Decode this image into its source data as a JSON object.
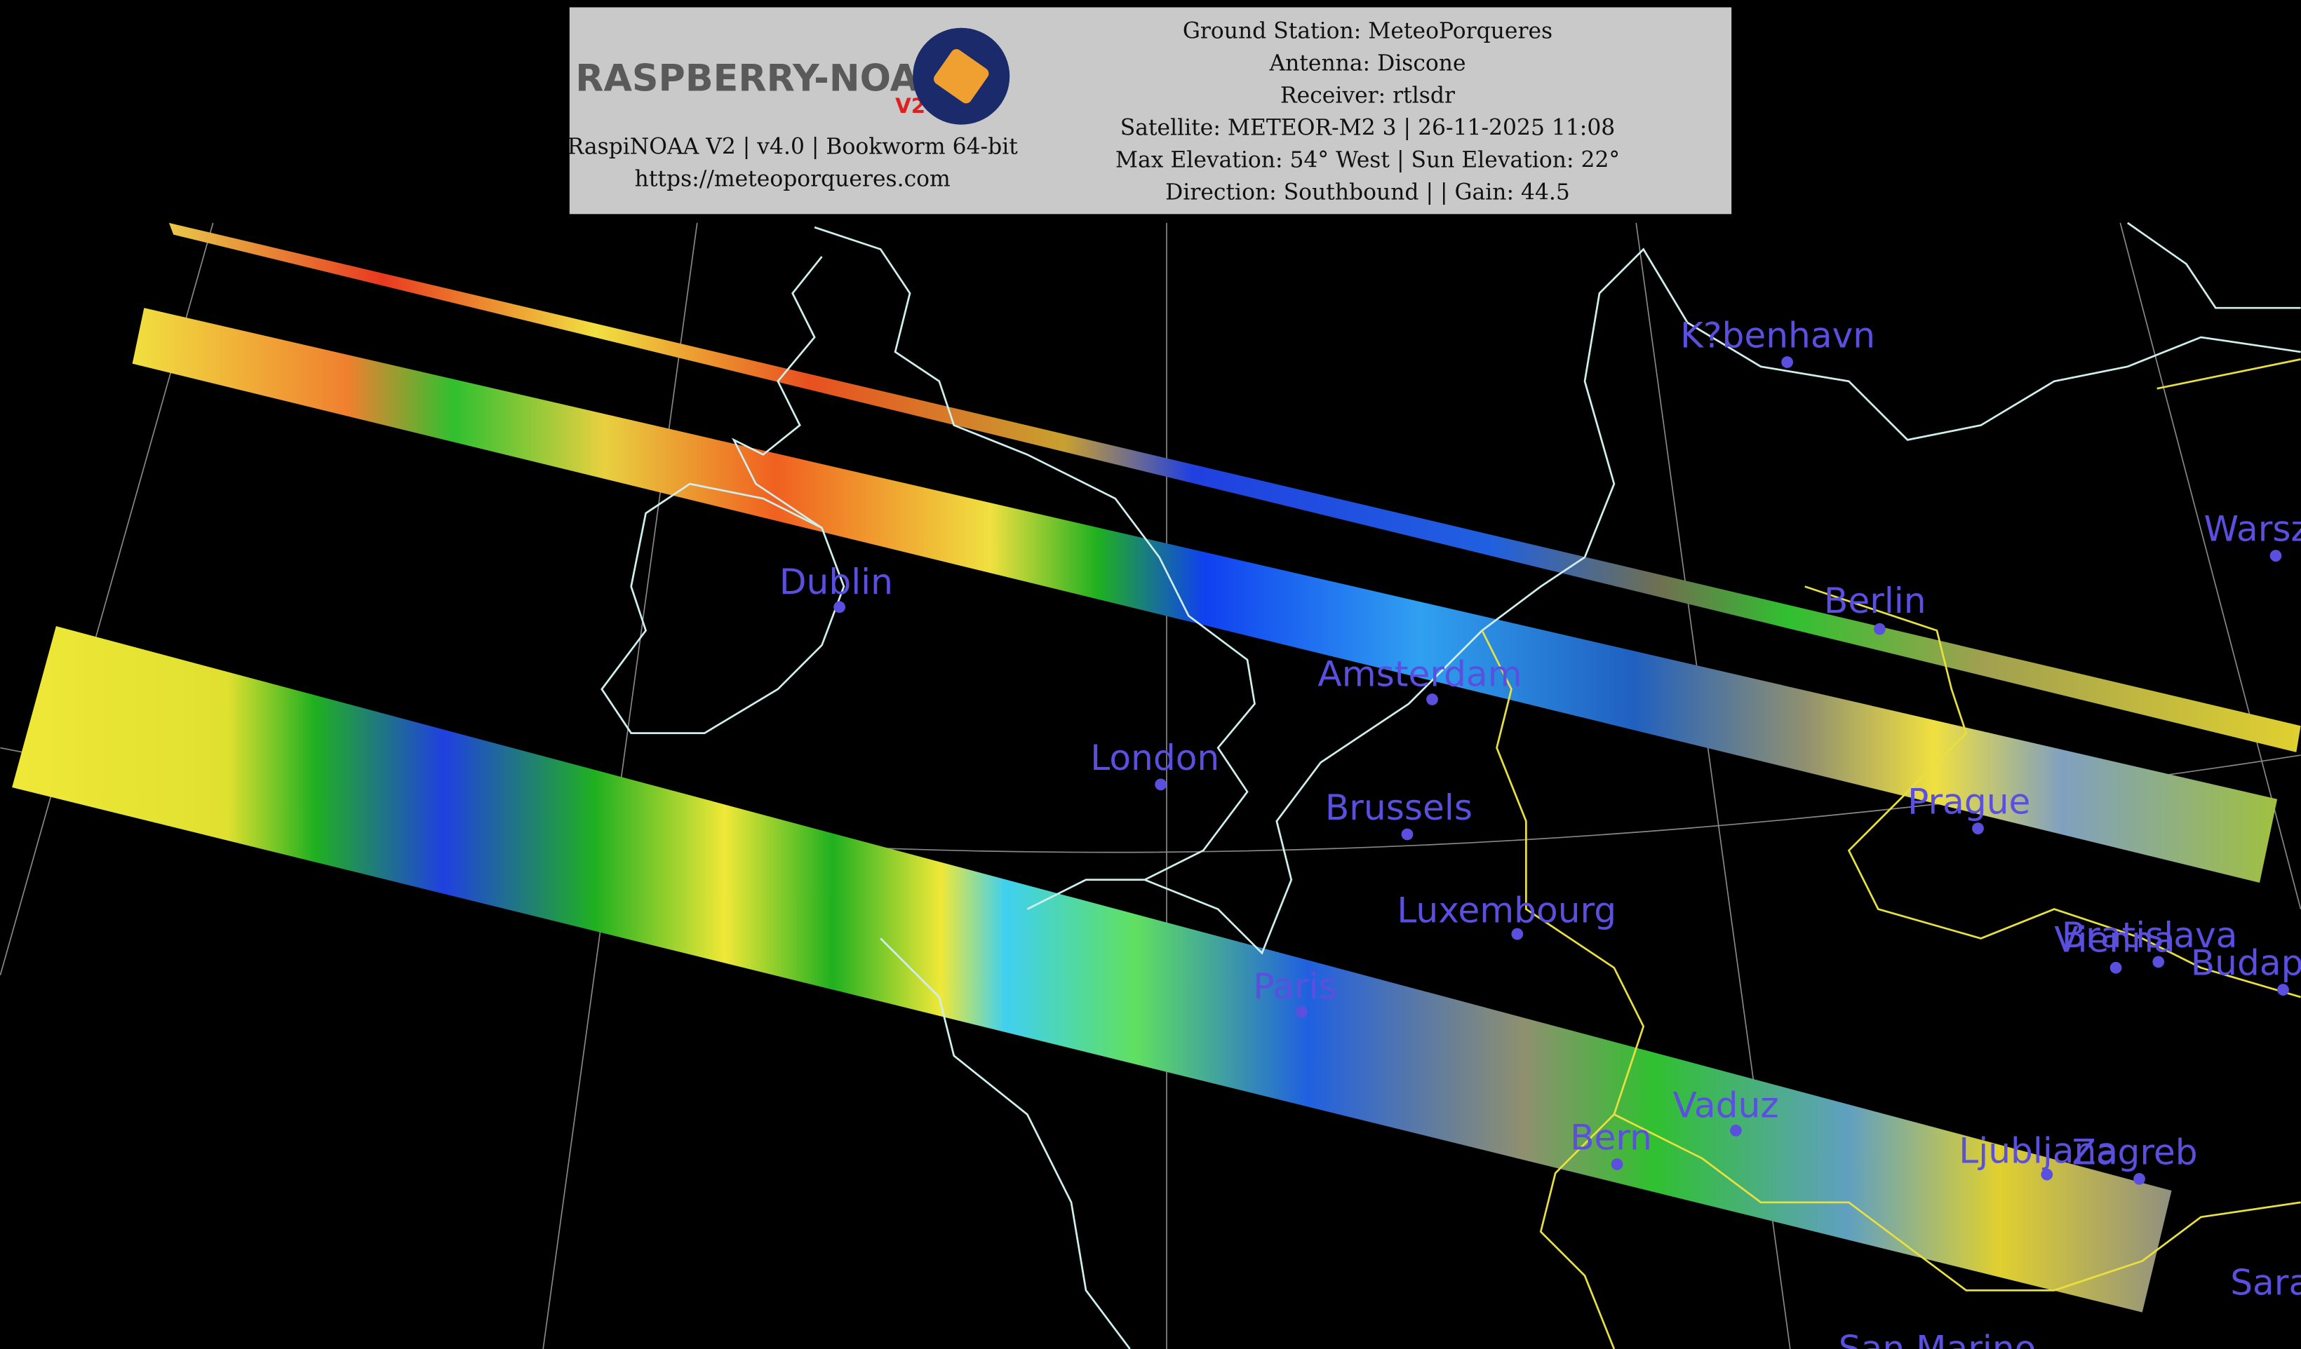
{
  "header": {
    "logo": "RASPBERRY-NOAA",
    "logo_badge": "V2",
    "version": "RaspiNOAA V2 | v4.0 | Bookworm 64-bit",
    "url": "https://meteoporqueres.com",
    "info": [
      "Ground Station: MeteoPorqueres",
      "Antenna: Discone",
      "Receiver: rtlsdr",
      "Satellite: METEOR-M2 3 | 26-11-2025 11:08",
      "Max Elevation: 54° West | Sun Elevation: 22°",
      "Direction: Southbound | | Gain: 44.5"
    ]
  },
  "cities": [
    "K?benhavn",
    "Warszawa",
    "Dublin",
    "Berlin",
    "Amsterdam",
    "London",
    "Brussels",
    "Prague",
    "Luxembourg",
    "Bratislava",
    "Vienna",
    "Budapest",
    "Paris",
    "Vaduz",
    "Bern",
    "Ljubljana",
    "Zagreb",
    "Sarajevo",
    "San Marino"
  ]
}
